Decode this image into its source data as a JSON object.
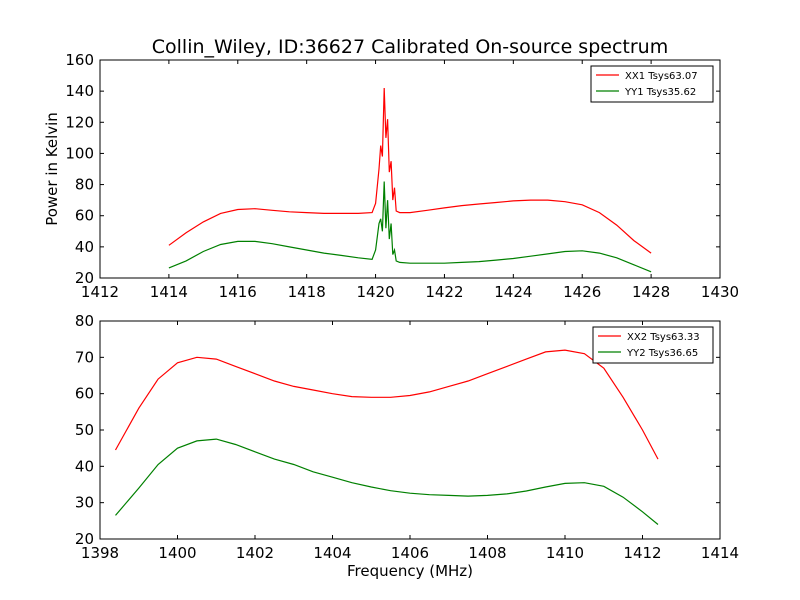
{
  "title": "Collin_Wiley, ID:36627 Calibrated On-source spectrum",
  "ylabel": "Power in Kelvin",
  "xlabel": "Frequency (MHz)",
  "colors": {
    "red": "#ff0000",
    "green": "#008000"
  },
  "chart_data": [
    {
      "type": "line",
      "title": "Collin_Wiley, ID:36627 Calibrated On-source spectrum",
      "ylabel": "Power in Kelvin",
      "xlabel": "",
      "xlim": [
        1412,
        1430
      ],
      "ylim": [
        20,
        160
      ],
      "xticks": [
        1412,
        1414,
        1416,
        1418,
        1420,
        1422,
        1424,
        1426,
        1428,
        1430
      ],
      "yticks": [
        20,
        40,
        60,
        80,
        100,
        120,
        140,
        160
      ],
      "grid": false,
      "legend_position": "top-right",
      "series": [
        {
          "name": "XX1 Tsys63.07",
          "color": "#ff0000",
          "x": [
            1414.0,
            1414.5,
            1415.0,
            1415.5,
            1416.0,
            1416.5,
            1417.0,
            1417.5,
            1418.0,
            1418.5,
            1419.0,
            1419.5,
            1419.9,
            1420.0,
            1420.1,
            1420.15,
            1420.2,
            1420.25,
            1420.3,
            1420.35,
            1420.4,
            1420.45,
            1420.5,
            1420.55,
            1420.6,
            1420.7,
            1421.0,
            1421.5,
            1422.0,
            1422.5,
            1423.0,
            1423.5,
            1424.0,
            1424.5,
            1425.0,
            1425.5,
            1426.0,
            1426.5,
            1427.0,
            1427.5,
            1428.0
          ],
          "y": [
            41,
            49,
            56,
            61.5,
            64,
            64.5,
            63.5,
            62.5,
            62,
            61.5,
            61.5,
            61.5,
            62,
            68,
            90,
            105,
            98,
            142,
            110,
            122,
            88,
            95,
            70,
            78,
            63,
            62,
            62,
            63.5,
            65,
            66.5,
            67.5,
            68.5,
            69.5,
            70,
            70,
            69,
            67,
            62,
            54,
            44,
            36
          ]
        },
        {
          "name": "YY1 Tsys35.62",
          "color": "#008000",
          "x": [
            1414.0,
            1414.5,
            1415.0,
            1415.5,
            1416.0,
            1416.5,
            1417.0,
            1417.5,
            1418.0,
            1418.5,
            1419.0,
            1419.5,
            1419.9,
            1420.0,
            1420.1,
            1420.15,
            1420.2,
            1420.25,
            1420.3,
            1420.35,
            1420.4,
            1420.45,
            1420.5,
            1420.55,
            1420.6,
            1420.7,
            1421.0,
            1421.5,
            1422.0,
            1422.5,
            1423.0,
            1423.5,
            1424.0,
            1424.5,
            1425.0,
            1425.5,
            1426.0,
            1426.5,
            1427.0,
            1427.5,
            1428.0
          ],
          "y": [
            26.5,
            31,
            37,
            41.5,
            43.5,
            43.5,
            42,
            40,
            38,
            36,
            34.5,
            33,
            32,
            38,
            55,
            58,
            50,
            82,
            52,
            70,
            45,
            55,
            35,
            38,
            31,
            30,
            29.5,
            29.5,
            29.5,
            30,
            30.5,
            31.5,
            32.5,
            34,
            35.5,
            37,
            37.5,
            36,
            33,
            28.5,
            24
          ]
        }
      ]
    },
    {
      "type": "line",
      "title": "",
      "xlabel": "Frequency (MHz)",
      "ylabel": "",
      "xlim": [
        1398,
        1414
      ],
      "ylim": [
        20,
        80
      ],
      "xticks": [
        1398,
        1400,
        1402,
        1404,
        1406,
        1408,
        1410,
        1412,
        1414
      ],
      "yticks": [
        20,
        30,
        40,
        50,
        60,
        70,
        80
      ],
      "grid": false,
      "legend_position": "top-right",
      "series": [
        {
          "name": "XX2 Tsys63.33",
          "color": "#ff0000",
          "x": [
            1398.4,
            1399.0,
            1399.5,
            1400.0,
            1400.5,
            1401.0,
            1401.5,
            1402.0,
            1402.5,
            1403.0,
            1403.5,
            1404.0,
            1404.5,
            1405.0,
            1405.5,
            1406.0,
            1406.5,
            1407.0,
            1407.5,
            1408.0,
            1408.5,
            1409.0,
            1409.5,
            1410.0,
            1410.5,
            1411.0,
            1411.5,
            1412.0,
            1412.4
          ],
          "y": [
            44.5,
            56,
            64,
            68.5,
            70,
            69.5,
            67.5,
            65.5,
            63.5,
            62,
            61,
            60,
            59.2,
            59,
            59,
            59.5,
            60.5,
            62,
            63.5,
            65.5,
            67.5,
            69.5,
            71.5,
            72,
            71,
            67,
            59,
            50,
            42
          ]
        },
        {
          "name": "YY2 Tsys36.65",
          "color": "#008000",
          "x": [
            1398.4,
            1399.0,
            1399.5,
            1400.0,
            1400.5,
            1401.0,
            1401.5,
            1402.0,
            1402.5,
            1403.0,
            1403.5,
            1404.0,
            1404.5,
            1405.0,
            1405.5,
            1406.0,
            1406.5,
            1407.0,
            1407.5,
            1408.0,
            1408.5,
            1409.0,
            1409.5,
            1410.0,
            1410.5,
            1411.0,
            1411.5,
            1412.0,
            1412.4
          ],
          "y": [
            26.5,
            34,
            40.5,
            45,
            47,
            47.5,
            46,
            44,
            42,
            40.5,
            38.5,
            37,
            35.5,
            34.3,
            33.3,
            32.6,
            32.2,
            32,
            31.8,
            32,
            32.4,
            33.2,
            34.3,
            35.3,
            35.5,
            34.5,
            31.5,
            27.5,
            24
          ]
        }
      ]
    }
  ]
}
